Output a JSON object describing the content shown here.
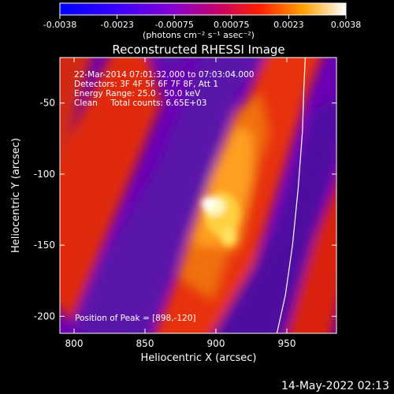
{
  "chart_data": {
    "type": "heatmap",
    "title": "Reconstructed RHESSI Image",
    "xlabel": "Heliocentric X (arcsec)",
    "ylabel": "Heliocentric Y (arcsec)",
    "xlim": [
      790,
      985
    ],
    "ylim": [
      -212,
      -18
    ],
    "x_ticks": [
      800,
      850,
      900,
      950
    ],
    "y_ticks": [
      -50,
      -100,
      -150,
      -200
    ],
    "colorbar": {
      "min": -0.0038,
      "max": 0.0038,
      "ticks": [
        "-0.0038",
        "-0.0023",
        "-0.00075",
        "0.00075",
        "0.0023",
        "0.0038"
      ],
      "unit_label": "(photons cm⁻² s⁻¹ asec⁻²)"
    },
    "annotations": [
      "22-Mar-2014 07:01:32.000 to 07:03:04.000",
      "Detectors: 3F 4F 5F 6F 7F 8F, Att 1",
      "Energy Range: 25.0 - 50.0 keV",
      "Clean     Total counts: 6.65E+03"
    ],
    "peak_label": "Position of Peak = [898,-120]",
    "peak": {
      "x": 898,
      "y": -120,
      "value": 0.0038
    },
    "limb_curve": {
      "x": [
        963,
        962,
        961,
        958,
        954,
        949,
        943
      ],
      "y": [
        -18,
        -40,
        -70,
        -110,
        -150,
        -185,
        -212
      ]
    },
    "footer": "14-May-2022 02:13"
  }
}
